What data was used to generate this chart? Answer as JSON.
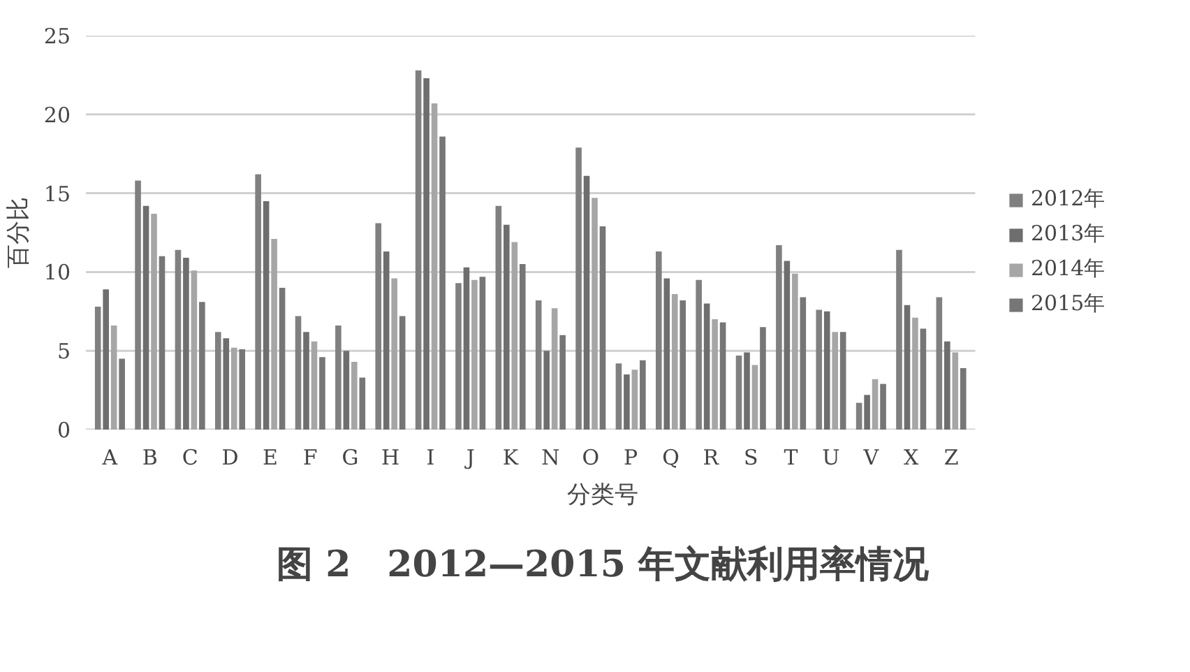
{
  "chart_data": {
    "type": "bar",
    "title": "图 2　2012—2015 年文献利用率情况",
    "xlabel": "分类号",
    "ylabel": "百分比",
    "categories": [
      "A",
      "B",
      "C",
      "D",
      "E",
      "F",
      "G",
      "H",
      "I",
      "J",
      "K",
      "N",
      "O",
      "P",
      "Q",
      "R",
      "S",
      "T",
      "U",
      "V",
      "X",
      "Z"
    ],
    "series": [
      {
        "name": "2012年",
        "color": "#808080",
        "values": [
          7.8,
          15.8,
          11.4,
          6.2,
          16.2,
          7.2,
          6.6,
          13.1,
          22.8,
          9.3,
          14.2,
          8.2,
          17.9,
          4.2,
          11.3,
          9.5,
          4.7,
          11.7,
          7.6,
          1.7,
          11.4,
          8.4
        ]
      },
      {
        "name": "2013年",
        "color": "#6e6e6e",
        "values": [
          8.9,
          14.2,
          10.9,
          5.8,
          14.5,
          6.2,
          5.0,
          11.3,
          22.3,
          10.3,
          13.0,
          5.0,
          16.1,
          3.5,
          9.6,
          8.0,
          4.9,
          10.7,
          7.5,
          2.2,
          7.9,
          5.6
        ]
      },
      {
        "name": "2014年",
        "color": "#a6a6a6",
        "values": [
          6.6,
          13.7,
          10.1,
          5.2,
          12.1,
          5.6,
          4.3,
          9.6,
          20.7,
          9.5,
          11.9,
          7.7,
          14.7,
          3.8,
          8.6,
          7.0,
          4.1,
          9.9,
          6.2,
          3.2,
          7.1,
          4.9
        ]
      },
      {
        "name": "2015年",
        "color": "#767676",
        "values": [
          4.5,
          11.0,
          8.1,
          5.1,
          9.0,
          4.6,
          3.3,
          7.2,
          18.6,
          9.7,
          10.5,
          6.0,
          12.9,
          4.4,
          8.2,
          6.8,
          6.5,
          8.4,
          6.2,
          2.9,
          6.4,
          3.9
        ]
      }
    ],
    "ylim": [
      0,
      25
    ],
    "yticks": [
      0,
      5,
      10,
      15,
      20,
      25
    ],
    "grid": "y",
    "legend": "right"
  }
}
